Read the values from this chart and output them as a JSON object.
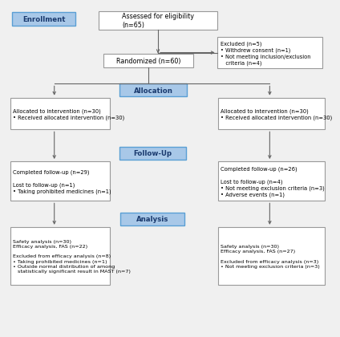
{
  "bg_color": "#f0f0f0",
  "box_border_color": "#999999",
  "blue_fill": "#a8c8e8",
  "blue_border": "#5a9fd4",
  "white_fill": "#ffffff",
  "enrollment_label": "Enrollment",
  "allocation_label": "Allocation",
  "followup_label": "Follow-Up",
  "analysis_label": "Analysis",
  "assessed_text": "Assessed for eligibility\n(n=65)",
  "excluded_text": "Excluded (n=5)\n• Withdrew consent (n=1)\n• Not meeting inclusion/exclusion\n   criteria (n=4)",
  "randomized_text": "Randomized (n=60)",
  "alloc_left_text": "Allocated to intervention (n=30)\n• Received allocated intervention (n=30)",
  "alloc_right_text": "Allocated to intervention (n=30)\n• Received allocated intervention (n=30)",
  "followup_left_text": "Completed follow-up (n=29)\n\nLost to follow-up (n=1)\n• Taking prohibited medicines (n=1)",
  "followup_right_text": "Completed follow-up (n=26)\n\nLost to follow-up (n=4)\n• Not meeting exclusion criteria (n=3)\n• Adverse events (n=1)",
  "analysis_left_text": "Safety analysis (n=30)\nEfficacy analysis, FAS (n=22)\n\nExcluded from efficacy analysis (n=8)\n• Taking prohibited medicines (n=1)\n• Outside normal distribution of among\n   statistically significant result in MAST (n=7)",
  "analysis_right_text": "Safety analysis (n=30)\nEfficacy analysis, FAS (n=27)\n\nExcluded from efficacy analysis (n=3)\n• Not meeting exclusion criteria (n=3)"
}
